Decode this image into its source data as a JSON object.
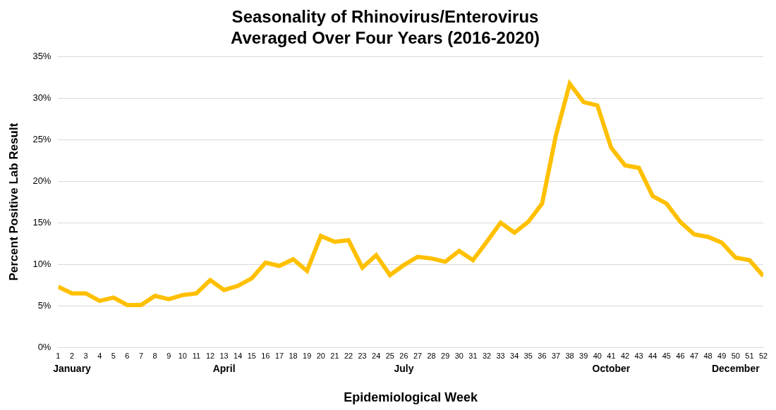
{
  "chart_data": {
    "type": "line",
    "title": [
      "Seasonality of Rhinovirus/Enterovirus",
      "Averaged Over Four Years (2016-2020)"
    ],
    "x_label": "Epidemiological Week",
    "y_label": "Percent Positive Lab Result",
    "categories": [
      1,
      2,
      3,
      4,
      5,
      6,
      7,
      8,
      9,
      10,
      11,
      12,
      13,
      14,
      15,
      16,
      17,
      18,
      19,
      20,
      21,
      22,
      23,
      24,
      25,
      26,
      27,
      28,
      29,
      30,
      31,
      32,
      33,
      34,
      35,
      36,
      37,
      38,
      39,
      40,
      41,
      42,
      43,
      44,
      45,
      46,
      47,
      48,
      49,
      50,
      51,
      52
    ],
    "values": [
      7.3,
      6.5,
      6.5,
      5.6,
      6.0,
      5.1,
      5.1,
      6.2,
      5.8,
      6.3,
      6.5,
      8.1,
      6.9,
      7.4,
      8.3,
      10.2,
      9.8,
      10.6,
      9.2,
      13.4,
      12.7,
      12.9,
      9.6,
      11.1,
      8.7,
      9.9,
      10.9,
      10.7,
      10.3,
      11.6,
      10.5,
      12.7,
      15.0,
      13.8,
      15.1,
      17.3,
      25.5,
      31.7,
      29.5,
      29.1,
      24.0,
      21.9,
      21.6,
      18.2,
      17.3,
      15.1,
      13.6,
      13.3,
      12.6,
      10.8,
      10.5,
      8.6
    ],
    "color": "#FFC000",
    "ylim": [
      0,
      35
    ],
    "yticks": [
      {
        "value": 0,
        "label": "0%"
      },
      {
        "value": 5,
        "label": "5%"
      },
      {
        "value": 10,
        "label": "10%"
      },
      {
        "value": 15,
        "label": "15%"
      },
      {
        "value": 20,
        "label": "20%"
      },
      {
        "value": 25,
        "label": "25%"
      },
      {
        "value": 30,
        "label": "30%"
      },
      {
        "value": 35,
        "label": "35%"
      }
    ],
    "grid": true,
    "annotations": [
      {
        "category": 2,
        "text": "January"
      },
      {
        "category": 13,
        "text": "April"
      },
      {
        "category": 26,
        "text": "July"
      },
      {
        "category": 41,
        "text": "October"
      },
      {
        "category": 50,
        "text": "December"
      }
    ]
  }
}
